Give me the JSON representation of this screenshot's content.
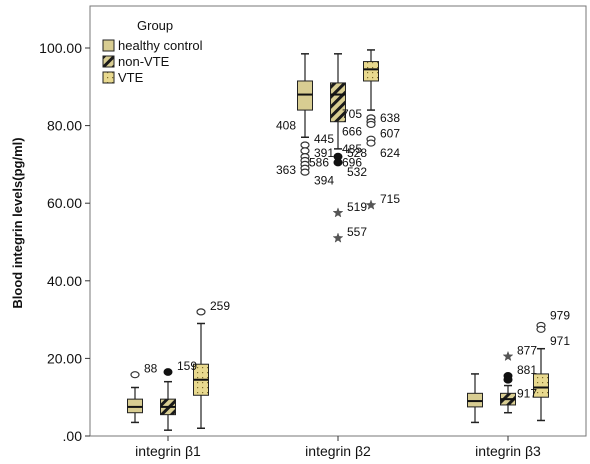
{
  "colors": {
    "healthy_fill": "#d8cd92",
    "nonvte_fill": "#d8cd92",
    "vte_fill": "#e8d98f",
    "stroke": "#222222",
    "star": "#555555"
  },
  "chart_data": {
    "type": "boxplot",
    "ylabel": "Blood integrin levels(pg/ml)",
    "ylim": [
      0,
      110
    ],
    "yticks": [
      0,
      20,
      40,
      60,
      80,
      100
    ],
    "ytick_labels": [
      ".00",
      "20.00",
      "40.00",
      "60.00",
      "80.00",
      "100.00"
    ],
    "categories": [
      "integrin β1",
      "integrin β2",
      "integrin β3"
    ],
    "legend": {
      "title": "Group",
      "position": "top-left",
      "entries": [
        "healthy control",
        "non-VTE",
        "VTE"
      ]
    },
    "series": [
      {
        "name": "healthy control",
        "boxes": [
          {
            "whislo": 3.5,
            "q1": 6,
            "med": 7.5,
            "q3": 9.5,
            "whishi": 12.5
          },
          {
            "whislo": 77,
            "q1": 84,
            "med": 88,
            "q3": 91.5,
            "whishi": 98.5
          },
          {
            "whislo": 3.5,
            "q1": 7.5,
            "med": 9,
            "q3": 11,
            "whishi": 16
          }
        ]
      },
      {
        "name": "non-VTE",
        "boxes": [
          {
            "whislo": 1.5,
            "q1": 5.5,
            "med": 7.5,
            "q3": 9.5,
            "whishi": 14
          },
          {
            "whislo": 74,
            "q1": 81,
            "med": 88,
            "q3": 91,
            "whishi": 98.5
          },
          {
            "whislo": 6,
            "q1": 8,
            "med": 9.5,
            "q3": 11,
            "whishi": 13
          }
        ]
      },
      {
        "name": "VTE",
        "boxes": [
          {
            "whislo": 2,
            "q1": 10.5,
            "med": 14.5,
            "q3": 18.5,
            "whishi": 29
          },
          {
            "whislo": 84,
            "q1": 91.5,
            "med": 94.5,
            "q3": 96.5,
            "whishi": 99.5
          },
          {
            "whislo": 4,
            "q1": 10,
            "med": 12.5,
            "q3": 16,
            "whishi": 22.5
          }
        ]
      }
    ],
    "outliers": [
      {
        "cat": 0,
        "series": 0,
        "y": 15.8,
        "marker": "circle",
        "label": "88"
      },
      {
        "cat": 0,
        "series": 1,
        "y": 16.5,
        "marker": "dot",
        "label": "159"
      },
      {
        "cat": 0,
        "series": 2,
        "y": 32,
        "marker": "circle",
        "label": "259"
      },
      {
        "cat": 1,
        "series": 0,
        "y": 75,
        "marker": "circle",
        "label": ""
      },
      {
        "cat": 1,
        "series": 0,
        "y": 73.5,
        "marker": "circle",
        "label": ""
      },
      {
        "cat": 1,
        "series": 0,
        "y": 72,
        "marker": "circle",
        "label": ""
      },
      {
        "cat": 1,
        "series": 0,
        "y": 71,
        "marker": "circle",
        "label": ""
      },
      {
        "cat": 1,
        "series": 0,
        "y": 70,
        "marker": "circle",
        "label": ""
      },
      {
        "cat": 1,
        "series": 0,
        "y": 69,
        "marker": "circle",
        "label": ""
      },
      {
        "cat": 1,
        "series": 0,
        "y": 68,
        "marker": "circle",
        "label": ""
      },
      {
        "cat": 1,
        "series": 1,
        "y": 72,
        "marker": "dot",
        "label": ""
      },
      {
        "cat": 1,
        "series": 1,
        "y": 70.5,
        "marker": "dot",
        "label": ""
      },
      {
        "cat": 1,
        "series": 1,
        "y": 57.5,
        "marker": "star",
        "label": "519"
      },
      {
        "cat": 1,
        "series": 1,
        "y": 51,
        "marker": "star",
        "label": "557"
      },
      {
        "cat": 1,
        "series": 2,
        "y": 82,
        "marker": "circle",
        "label": ""
      },
      {
        "cat": 1,
        "series": 2,
        "y": 81,
        "marker": "circle",
        "label": ""
      },
      {
        "cat": 1,
        "series": 2,
        "y": 80.3,
        "marker": "circle",
        "label": ""
      },
      {
        "cat": 1,
        "series": 2,
        "y": 76.5,
        "marker": "circle",
        "label": ""
      },
      {
        "cat": 1,
        "series": 2,
        "y": 75.5,
        "marker": "circle",
        "label": ""
      },
      {
        "cat": 1,
        "series": 2,
        "y": 59.5,
        "marker": "star",
        "label": "715"
      },
      {
        "cat": 2,
        "series": 1,
        "y": 20.5,
        "marker": "star",
        "label": "877"
      },
      {
        "cat": 2,
        "series": 1,
        "y": 15.5,
        "marker": "dot",
        "label": "881"
      },
      {
        "cat": 2,
        "series": 1,
        "y": 14.5,
        "marker": "dot",
        "label": ""
      },
      {
        "cat": 2,
        "series": 2,
        "y": 28.5,
        "marker": "circle",
        "label": ""
      },
      {
        "cat": 2,
        "series": 2,
        "y": 27.5,
        "marker": "circle",
        "label": ""
      }
    ],
    "annotations": [
      {
        "cat": 1,
        "series": 0,
        "y": 80,
        "label": "408",
        "side": "left"
      },
      {
        "cat": 1,
        "series": 0,
        "y": 68.5,
        "label": "363",
        "side": "left"
      },
      {
        "cat": 1,
        "series": 0,
        "y": 76.5,
        "label": "445",
        "side": "right"
      },
      {
        "cat": 1,
        "series": 0,
        "y": 73,
        "label": "391",
        "side": "right"
      },
      {
        "cat": 1,
        "series": 0,
        "y": 65.8,
        "label": "394",
        "side": "right"
      },
      {
        "cat": 1,
        "series": 1,
        "y": 73,
        "label": "528",
        "side": "right"
      },
      {
        "cat": 1,
        "series": 1,
        "y": 70.5,
        "label": "586",
        "side": "left"
      },
      {
        "cat": 1,
        "series": 1,
        "y": 68,
        "label": "532",
        "side": "right"
      },
      {
        "cat": 1,
        "series": 2,
        "y": 83,
        "label": "705",
        "side": "left"
      },
      {
        "cat": 1,
        "series": 2,
        "y": 78.5,
        "label": "666",
        "side": "left"
      },
      {
        "cat": 1,
        "series": 2,
        "y": 74,
        "label": "485",
        "side": "left"
      },
      {
        "cat": 1,
        "series": 2,
        "y": 70.5,
        "label": "696",
        "side": "left"
      },
      {
        "cat": 1,
        "series": 2,
        "y": 82,
        "label": "638",
        "side": "right"
      },
      {
        "cat": 1,
        "series": 2,
        "y": 78,
        "label": "607",
        "side": "right"
      },
      {
        "cat": 1,
        "series": 2,
        "y": 73,
        "label": "624",
        "side": "right"
      },
      {
        "cat": 2,
        "series": 1,
        "y": 11,
        "label": "917",
        "side": "right"
      },
      {
        "cat": 2,
        "series": 2,
        "y": 31,
        "label": "979",
        "side": "right"
      },
      {
        "cat": 2,
        "series": 2,
        "y": 24.5,
        "label": "971",
        "side": "right"
      }
    ]
  }
}
